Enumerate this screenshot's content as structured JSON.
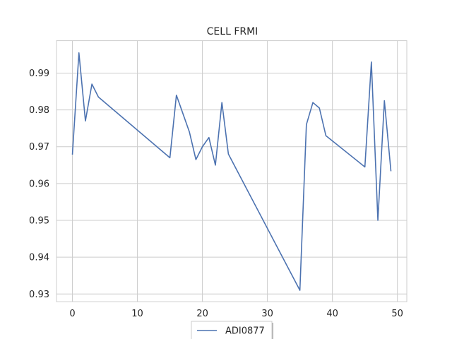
{
  "chart_data": {
    "type": "line",
    "title": "CELL FRMI",
    "xlabel": "",
    "ylabel": "",
    "xlim": [
      -2.45,
      51.45
    ],
    "ylim": [
      0.9279,
      0.9988
    ],
    "xticks": [
      0,
      10,
      20,
      30,
      40,
      50
    ],
    "yticks": [
      0.93,
      0.94,
      0.95,
      0.96,
      0.97,
      0.98,
      0.99
    ],
    "grid": true,
    "legend_position": "bottom-center",
    "series": [
      {
        "name": "ADI0877",
        "color": "#4c72b0",
        "x": [
          0,
          1,
          2,
          3,
          4,
          15,
          16,
          18,
          19,
          20,
          21,
          22,
          23,
          24,
          35,
          36,
          37,
          38,
          39,
          45,
          46,
          47,
          48,
          49
        ],
        "y": [
          0.968,
          0.9955,
          0.977,
          0.987,
          0.9835,
          0.967,
          0.984,
          0.974,
          0.9665,
          0.97,
          0.9725,
          0.965,
          0.982,
          0.968,
          0.931,
          0.976,
          0.982,
          0.9805,
          0.973,
          0.9645,
          0.993,
          0.95,
          0.9825,
          0.9635
        ]
      }
    ]
  }
}
